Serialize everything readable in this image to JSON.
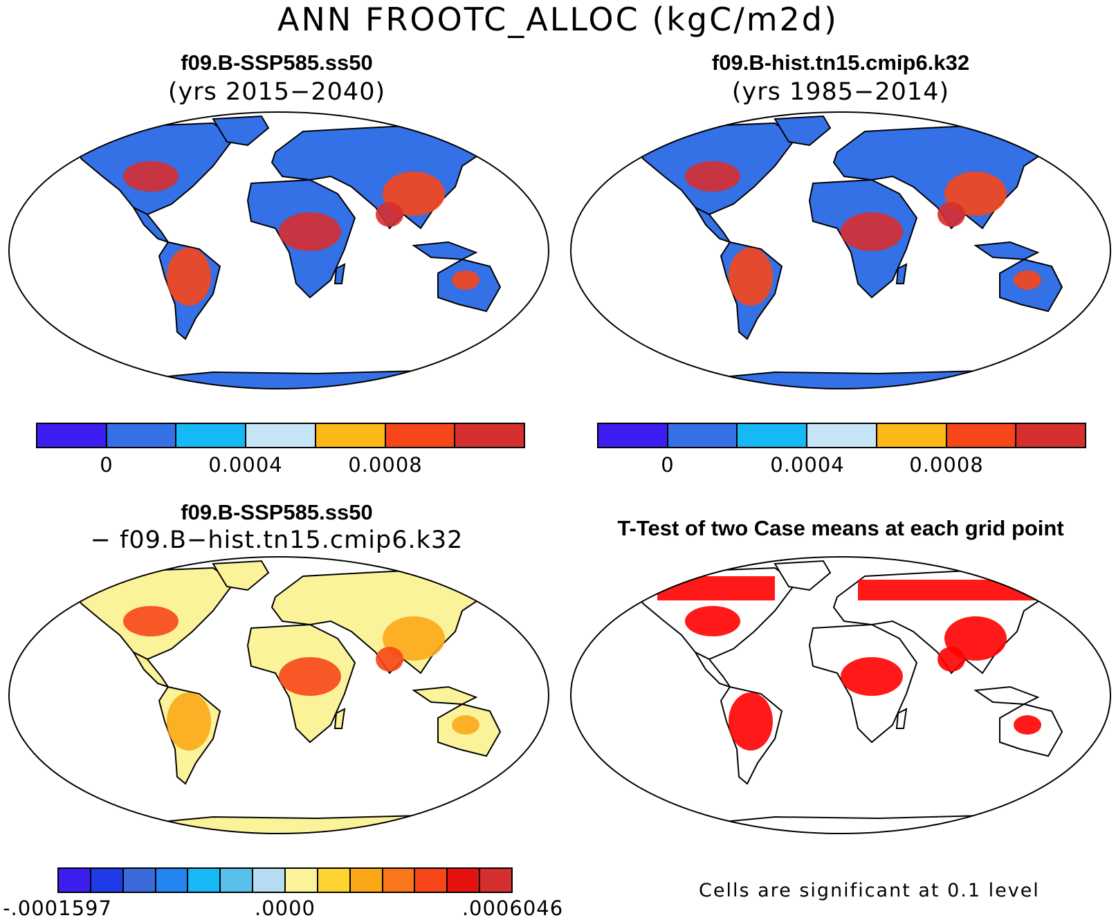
{
  "figure": {
    "title": "ANN FROOTC_ALLOC (kgC/m2d)"
  },
  "panels": {
    "tl": {
      "title": "f09.B-SSP585.ss50",
      "subtitle": "(yrs 2015−2040)"
    },
    "tr": {
      "title": "f09.B-hist.tn15.cmip6.k32",
      "subtitle": "(yrs 1985−2014)"
    },
    "bl": {
      "title": "f09.B-SSP585.ss50",
      "subtitle": "− f09.B−hist.tn15.cmip6.k32"
    },
    "br": {
      "title": "T-Test of two Case means at each grid point",
      "note": "Cells are significant at 0.1 level"
    }
  },
  "colorbars": {
    "case": {
      "colors": [
        "#3c1ef0",
        "#3470e6",
        "#16b8f5",
        "#c6e5f7",
        "#fbb816",
        "#f7461a",
        "#d62f2f"
      ],
      "ticks": [
        "0",
        "0.0004",
        "0.0008"
      ]
    },
    "diff": {
      "colors": [
        "#3c1ef0",
        "#1f3ce8",
        "#3a6ad9",
        "#2485f0",
        "#16b8f5",
        "#59c0ec",
        "#b7dcf2",
        "#fbf39a",
        "#fcd331",
        "#fba818",
        "#f9761b",
        "#f7461a",
        "#e4130f",
        "#d62f2f"
      ],
      "ticks": [
        "-.0001597",
        ".0000",
        ".0006046"
      ]
    }
  },
  "map_colors": {
    "ocean": "#ffffff",
    "coast": "#000000",
    "significant": "#ff0000"
  }
}
